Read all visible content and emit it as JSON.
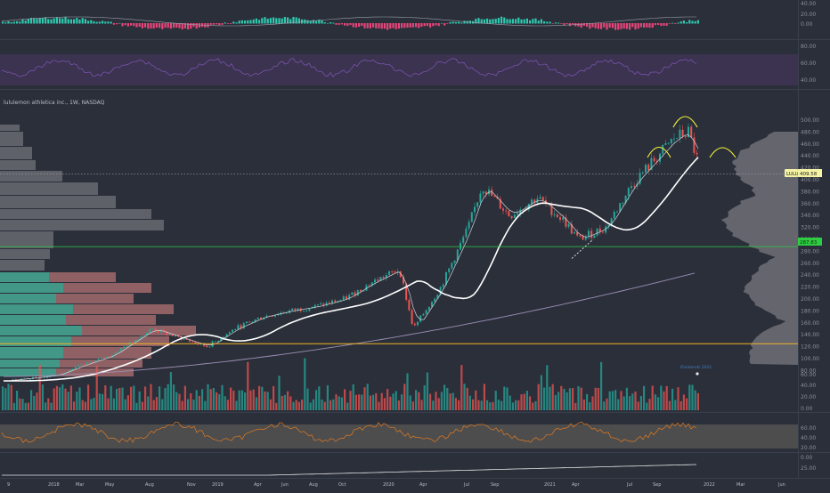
{
  "chart_data": {
    "type": "candlestick",
    "symbol_title": "lululemon athletica inc., 1W, NASDAQ",
    "ticker_badge": "LULU",
    "last_price": "409.58",
    "level_price": "287.83",
    "annotation": "Dividends 2021",
    "colors": {
      "up": "#26a69a",
      "down": "#ef5350",
      "ma_fast": "#cfd2d8",
      "ma_slow": "#ffffff",
      "ma_long": "#9c8fb5",
      "support_line": "#f0b429",
      "level_line": "#2ecc40",
      "arc": "#f5f53b",
      "rsi_line": "#e07b1f",
      "rsi_band": "#7a7468",
      "macd_pos": "#2fc9b0",
      "macd_neg": "#e8457a",
      "volume_profile": "#8a8a8f"
    },
    "price_axis": [
      "500.00",
      "480.00",
      "460.00",
      "440.00",
      "420.00",
      "400.00",
      "380.00",
      "360.00",
      "340.00",
      "320.00",
      "300.00",
      "280.00",
      "260.00",
      "240.00",
      "220.00",
      "200.00",
      "180.00",
      "160.00",
      "140.00",
      "120.00",
      "100.00",
      "80.00"
    ],
    "macd_axis": [
      "40.00",
      "20.00",
      "0.00"
    ],
    "stoch_axis": [
      "80.00",
      "60.00",
      "40.00"
    ],
    "volume_axis": [
      "60.00",
      "40.00",
      "20.00",
      "0.00"
    ],
    "rsi_axis": [
      "60.00",
      "40.00",
      "20.00"
    ],
    "adx_axis": [
      "0.00",
      "25.00"
    ],
    "time_axis": [
      "9",
      "2018",
      "Mar",
      "May",
      "Aug",
      "Nov",
      "2019",
      "Apr",
      "Jun",
      "Aug",
      "Oct",
      "2020",
      "Apr",
      "Jul",
      "Sep",
      "2021",
      "Apr",
      "Jul",
      "Sep",
      "2022",
      "Mar",
      "Jun"
    ],
    "price_series": [
      {
        "t": "2017-09",
        "close": 62
      },
      {
        "t": "2018-01",
        "close": 72
      },
      {
        "t": "2018-03",
        "close": 90
      },
      {
        "t": "2018-05",
        "close": 105
      },
      {
        "t": "2018-08",
        "close": 150
      },
      {
        "t": "2018-10",
        "close": 135
      },
      {
        "t": "2018-12",
        "close": 120
      },
      {
        "t": "2019-02",
        "close": 150
      },
      {
        "t": "2019-04",
        "close": 170
      },
      {
        "t": "2019-06",
        "close": 180
      },
      {
        "t": "2019-08",
        "close": 188
      },
      {
        "t": "2019-10",
        "close": 200
      },
      {
        "t": "2019-12",
        "close": 228
      },
      {
        "t": "2020-02",
        "close": 250
      },
      {
        "t": "2020-03",
        "close": 150
      },
      {
        "t": "2020-05",
        "close": 220
      },
      {
        "t": "2020-07",
        "close": 320
      },
      {
        "t": "2020-08",
        "close": 390
      },
      {
        "t": "2020-10",
        "close": 340
      },
      {
        "t": "2020-12",
        "close": 370
      },
      {
        "t": "2021-02",
        "close": 330
      },
      {
        "t": "2021-03",
        "close": 300
      },
      {
        "t": "2021-05",
        "close": 320
      },
      {
        "t": "2021-07",
        "close": 395
      },
      {
        "t": "2021-08",
        "close": 420
      },
      {
        "t": "2021-10",
        "close": 470
      },
      {
        "t": "2021-11",
        "close": 480
      },
      {
        "t": "2021-12",
        "close": 409.58
      }
    ]
  }
}
